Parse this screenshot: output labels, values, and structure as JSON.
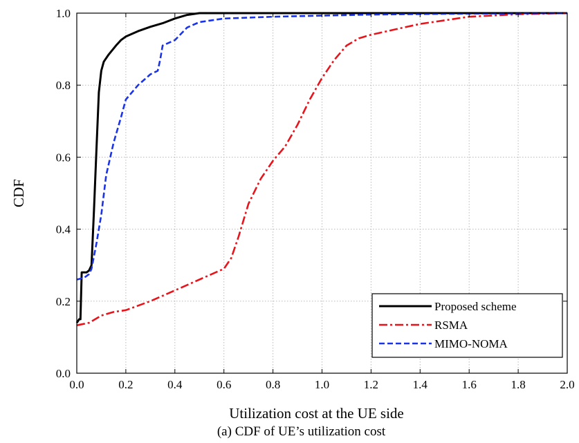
{
  "chart_data": {
    "type": "line",
    "title": "",
    "caption": "(a) CDF of UE’s utilization cost",
    "xlabel": "Utilization cost at the UE side",
    "ylabel": "CDF",
    "xlim": [
      0.0,
      2.0
    ],
    "ylim": [
      0.0,
      1.0
    ],
    "x_ticks": [
      "0.0",
      "0.2",
      "0.4",
      "0.6",
      "0.8",
      "1.0",
      "1.2",
      "1.4",
      "1.6",
      "1.8",
      "2.0"
    ],
    "y_ticks": [
      "0.0",
      "0.2",
      "0.4",
      "0.6",
      "0.8",
      "1.0"
    ],
    "grid": true,
    "legend_position": "bottom-right",
    "series": [
      {
        "name": "Proposed scheme",
        "color": "#000000",
        "dash": "solid",
        "points": [
          [
            0.0,
            0.14
          ],
          [
            0.01,
            0.15
          ],
          [
            0.015,
            0.15
          ],
          [
            0.02,
            0.28
          ],
          [
            0.04,
            0.28
          ],
          [
            0.05,
            0.285
          ],
          [
            0.06,
            0.3
          ],
          [
            0.07,
            0.45
          ],
          [
            0.08,
            0.62
          ],
          [
            0.09,
            0.78
          ],
          [
            0.1,
            0.84
          ],
          [
            0.11,
            0.865
          ],
          [
            0.13,
            0.885
          ],
          [
            0.16,
            0.91
          ],
          [
            0.18,
            0.925
          ],
          [
            0.2,
            0.935
          ],
          [
            0.25,
            0.95
          ],
          [
            0.3,
            0.962
          ],
          [
            0.35,
            0.972
          ],
          [
            0.4,
            0.985
          ],
          [
            0.45,
            0.995
          ],
          [
            0.5,
            1.0
          ],
          [
            0.6,
            1.0
          ],
          [
            1.0,
            1.0
          ],
          [
            2.0,
            1.0
          ]
        ]
      },
      {
        "name": "RSMA",
        "color": "#e8141b",
        "dash": "dashdot",
        "points": [
          [
            0.0,
            0.133
          ],
          [
            0.05,
            0.14
          ],
          [
            0.1,
            0.16
          ],
          [
            0.15,
            0.17
          ],
          [
            0.2,
            0.175
          ],
          [
            0.3,
            0.2
          ],
          [
            0.4,
            0.23
          ],
          [
            0.5,
            0.26
          ],
          [
            0.55,
            0.275
          ],
          [
            0.6,
            0.29
          ],
          [
            0.63,
            0.32
          ],
          [
            0.66,
            0.38
          ],
          [
            0.7,
            0.47
          ],
          [
            0.75,
            0.54
          ],
          [
            0.8,
            0.59
          ],
          [
            0.85,
            0.63
          ],
          [
            0.9,
            0.69
          ],
          [
            0.95,
            0.76
          ],
          [
            1.0,
            0.82
          ],
          [
            1.05,
            0.87
          ],
          [
            1.1,
            0.91
          ],
          [
            1.15,
            0.93
          ],
          [
            1.2,
            0.94
          ],
          [
            1.3,
            0.955
          ],
          [
            1.4,
            0.97
          ],
          [
            1.5,
            0.98
          ],
          [
            1.6,
            0.99
          ],
          [
            1.8,
            0.997
          ],
          [
            2.0,
            1.0
          ]
        ]
      },
      {
        "name": "MIMO-NOMA",
        "color": "#1a33e6",
        "dash": "dashed",
        "points": [
          [
            0.0,
            0.26
          ],
          [
            0.03,
            0.265
          ],
          [
            0.05,
            0.275
          ],
          [
            0.06,
            0.29
          ],
          [
            0.08,
            0.36
          ],
          [
            0.1,
            0.44
          ],
          [
            0.12,
            0.55
          ],
          [
            0.15,
            0.64
          ],
          [
            0.18,
            0.71
          ],
          [
            0.2,
            0.76
          ],
          [
            0.25,
            0.8
          ],
          [
            0.3,
            0.83
          ],
          [
            0.33,
            0.84
          ],
          [
            0.34,
            0.87
          ],
          [
            0.35,
            0.91
          ],
          [
            0.4,
            0.925
          ],
          [
            0.45,
            0.96
          ],
          [
            0.5,
            0.975
          ],
          [
            0.6,
            0.985
          ],
          [
            0.8,
            0.99
          ],
          [
            1.0,
            0.993
          ],
          [
            1.2,
            0.996
          ],
          [
            1.5,
            0.998
          ],
          [
            2.0,
            1.0
          ]
        ]
      }
    ]
  }
}
